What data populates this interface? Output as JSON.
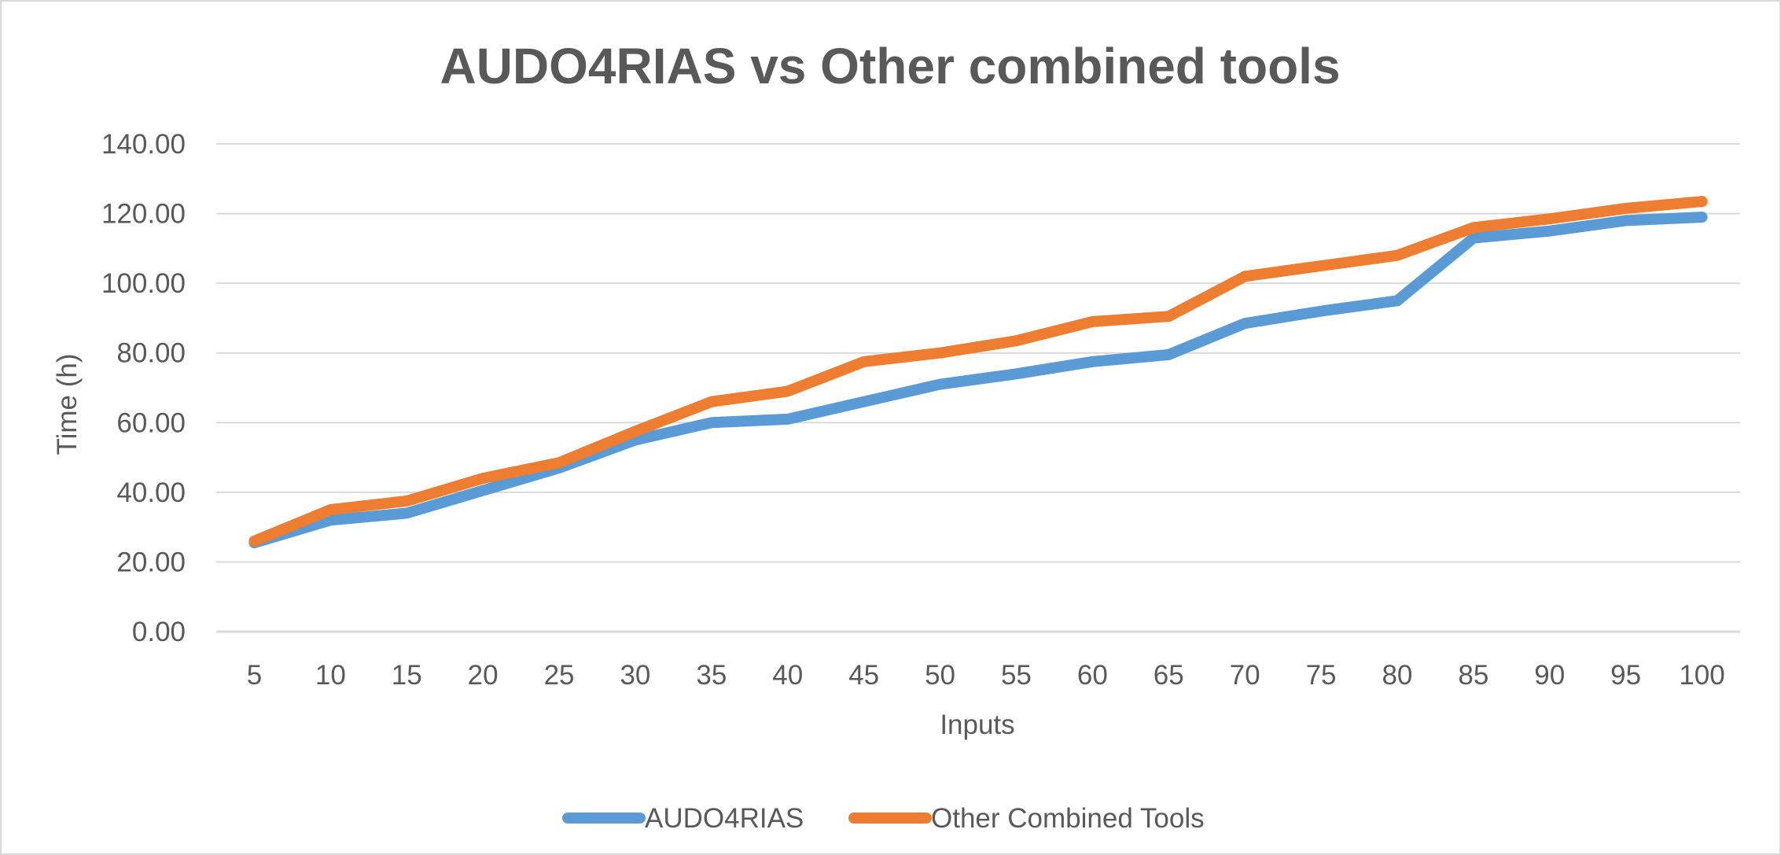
{
  "chart_data": {
    "type": "line",
    "title": "AUDO4RIAS vs Other combined tools",
    "xlabel": "Inputs",
    "ylabel": "Time (h)",
    "ylim": [
      0,
      140
    ],
    "ytick_step": 20,
    "ytick_labels": [
      "0.00",
      "20.00",
      "40.00",
      "60.00",
      "80.00",
      "100.00",
      "120.00",
      "140.00"
    ],
    "categories": [
      "5",
      "10",
      "15",
      "20",
      "25",
      "30",
      "35",
      "40",
      "45",
      "50",
      "55",
      "60",
      "65",
      "70",
      "75",
      "80",
      "85",
      "90",
      "95",
      "100"
    ],
    "grid": true,
    "legend_position": "bottom",
    "series": [
      {
        "name": "AUDO4RIAS",
        "color": "#5B9BD5",
        "values": [
          25.5,
          32.0,
          34.0,
          40.5,
          47.0,
          55.0,
          60.0,
          61.0,
          66.0,
          71.0,
          74.0,
          77.5,
          79.5,
          88.5,
          92.0,
          95.0,
          113.0,
          115.0,
          118.0,
          119.0
        ]
      },
      {
        "name": "Other Combined Tools",
        "color": "#ED7D31",
        "values": [
          26.0,
          35.0,
          37.5,
          44.0,
          48.5,
          57.5,
          66.0,
          69.0,
          77.5,
          80.0,
          83.5,
          89.0,
          90.5,
          102.0,
          105.0,
          108.0,
          116.0,
          118.5,
          121.5,
          123.5
        ]
      }
    ]
  }
}
